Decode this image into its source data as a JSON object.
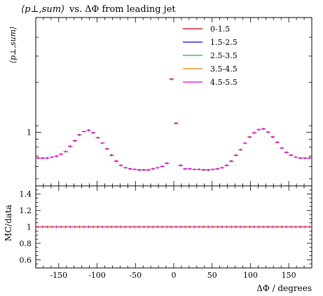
{
  "title": {
    "main_math": "⟨p⊥,sum⟩",
    "rest": "vs. ΔΦ from leading jet"
  },
  "chart_data": [
    {
      "type": "scatter",
      "panel": "main",
      "ylabel": "⟨p⊥,sum⟩",
      "yscale": "log",
      "ylim": [
        0.45,
        5.5
      ],
      "xlim": [
        -180,
        180
      ],
      "y_tick_labels": [
        "1"
      ],
      "legend_position": "top-right",
      "series": [
        {
          "name": "0-1.5",
          "color": "#bb0000"
        },
        {
          "name": "1.5-2.5",
          "color": "#0000ee"
        },
        {
          "name": "2.5-3.5",
          "color": "#00cc00"
        },
        {
          "name": "3.5-4.5",
          "color": "#ee8800"
        },
        {
          "name": "4.5-5.5",
          "color": "#dd00dd"
        }
      ],
      "x": [
        -177,
        -171,
        -165,
        -159,
        -153,
        -147,
        -141,
        -135,
        -129,
        -123,
        -117,
        -111,
        -105,
        -99,
        -93,
        -87,
        -81,
        -75,
        -69,
        -63,
        -57,
        -51,
        -45,
        -39,
        -33,
        -27,
        -21,
        -15,
        -9,
        -3,
        3,
        9,
        15,
        21,
        27,
        33,
        39,
        45,
        51,
        57,
        63,
        69,
        75,
        81,
        87,
        93,
        99,
        105,
        111,
        117,
        123,
        129,
        135,
        141,
        147,
        153,
        159,
        165,
        171,
        177
      ],
      "y": [
        0.68,
        0.68,
        0.68,
        0.69,
        0.7,
        0.72,
        0.75,
        0.81,
        0.88,
        0.96,
        1.01,
        1.03,
        0.99,
        0.92,
        0.85,
        0.78,
        0.71,
        0.65,
        0.61,
        0.59,
        0.58,
        0.575,
        0.57,
        0.57,
        0.57,
        0.58,
        0.59,
        0.6,
        0.63,
        2.2,
        1.14,
        0.61,
        0.58,
        0.58,
        0.575,
        0.575,
        0.57,
        0.57,
        0.575,
        0.58,
        0.59,
        0.61,
        0.65,
        0.71,
        0.77,
        0.85,
        0.93,
        0.99,
        1.04,
        1.05,
        1.0,
        0.93,
        0.86,
        0.79,
        0.74,
        0.71,
        0.69,
        0.68,
        0.68,
        0.68
      ]
    },
    {
      "type": "scatter",
      "panel": "ratio",
      "ylabel": "MC/data",
      "xlabel": "ΔΦ / degrees",
      "xlim": [
        -180,
        180
      ],
      "ylim": [
        0.5,
        1.5
      ],
      "x_ticks": [
        -150,
        -100,
        -50,
        0,
        50,
        100,
        150
      ],
      "x_tick_labels": [
        "-150",
        "-100",
        "-50",
        "0",
        "50",
        "100",
        "150"
      ],
      "y_ticks": [
        0.6,
        0.8,
        1,
        1.2,
        1.4
      ],
      "y_tick_labels": [
        "0.6",
        "0.8",
        "1",
        "1.2",
        "1.4"
      ],
      "values": "all 1.0",
      "y_value": 1.0
    }
  ]
}
